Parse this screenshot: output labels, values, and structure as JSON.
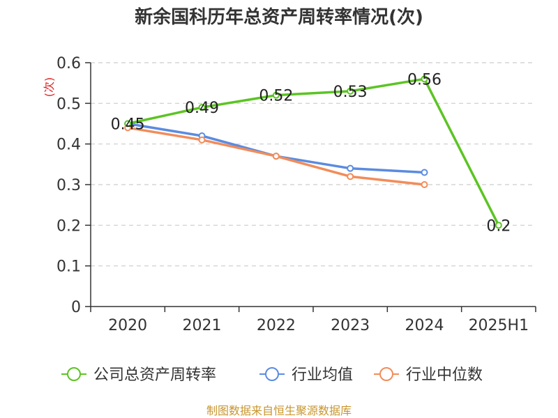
{
  "chart_data": {
    "type": "line",
    "title": "新余国科历年总资产周转率情况(次)",
    "ylabel": "(次)",
    "xlabel": "",
    "categories": [
      "2020",
      "2021",
      "2022",
      "2023",
      "2024",
      "2025H1"
    ],
    "ylim": [
      0,
      0.6
    ],
    "yticks": [
      "0",
      "0.1",
      "0.2",
      "0.3",
      "0.4",
      "0.5",
      "0.6"
    ],
    "grid": true,
    "legend_position": "bottom",
    "series": [
      {
        "name": "公司总资产周转率",
        "color": "#5cc423",
        "values": [
          0.45,
          0.49,
          0.52,
          0.53,
          0.56,
          0.2
        ],
        "labels": [
          "0.45",
          "0.49",
          "0.52",
          "0.53",
          "0.56",
          "0.2"
        ]
      },
      {
        "name": "行业均值",
        "color": "#5b8be0",
        "values": [
          0.45,
          0.42,
          0.37,
          0.34,
          0.33,
          null
        ]
      },
      {
        "name": "行业中位数",
        "color": "#f28c5a",
        "values": [
          0.44,
          0.41,
          0.37,
          0.32,
          0.3,
          null
        ]
      }
    ],
    "source": "制图数据来自恒生聚源数据库"
  }
}
